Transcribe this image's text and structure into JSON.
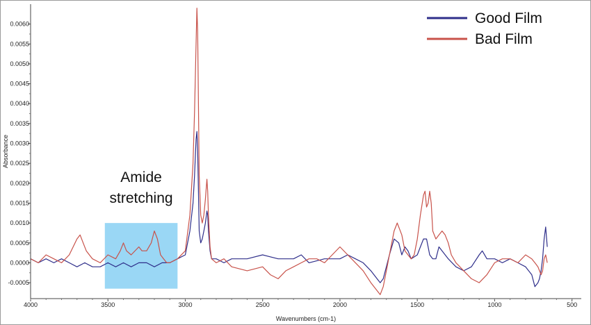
{
  "chart_data": {
    "type": "line",
    "title": "",
    "xlabel": "Wavenumbers (cm-1)",
    "ylabel": "Absorbance",
    "xlim": [
      4000,
      440
    ],
    "ylim": [
      -0.0009,
      0.0065
    ],
    "x_ticks": [
      4000,
      3500,
      3000,
      2500,
      2000,
      1500,
      1000,
      500
    ],
    "y_ticks": [
      -0.0005,
      0.0,
      0.0005,
      0.001,
      0.0015,
      0.002,
      0.0025,
      0.003,
      0.0035,
      0.004,
      0.0045,
      0.005,
      0.0055,
      0.006
    ],
    "x_tick_labels": [
      "4000",
      "3500",
      "3000",
      "2500",
      "2000",
      "1500",
      "1000",
      "500"
    ],
    "y_tick_labels": [
      "-0.0005",
      "0.0000",
      "0.0005",
      "0.0010",
      "0.0015",
      "0.0020",
      "0.0025",
      "0.0030",
      "0.0035",
      "0.0040",
      "0.0045",
      "0.0050",
      "0.0055",
      "0.0060"
    ],
    "grid": false,
    "legend_position": "top-right",
    "annotation": {
      "text_line1": "Amide",
      "text_line2": "stretching",
      "x_range": [
        3520,
        3050
      ],
      "y_range": [
        -0.00065,
        0.001
      ],
      "color": "#8fd3f4"
    },
    "series": [
      {
        "name": "Good Film",
        "color": "#2e2e8a",
        "x": [
          4000,
          3950,
          3900,
          3850,
          3800,
          3750,
          3700,
          3650,
          3600,
          3550,
          3500,
          3450,
          3400,
          3350,
          3300,
          3250,
          3200,
          3150,
          3100,
          3050,
          3000,
          2970,
          2950,
          2940,
          2930,
          2925,
          2920,
          2915,
          2910,
          2900,
          2890,
          2880,
          2870,
          2860,
          2855,
          2850,
          2840,
          2830,
          2800,
          2750,
          2700,
          2600,
          2500,
          2400,
          2300,
          2250,
          2200,
          2100,
          2000,
          1950,
          1900,
          1850,
          1800,
          1760,
          1740,
          1720,
          1700,
          1680,
          1650,
          1620,
          1600,
          1580,
          1560,
          1540,
          1500,
          1480,
          1460,
          1440,
          1420,
          1400,
          1380,
          1360,
          1340,
          1300,
          1250,
          1200,
          1150,
          1100,
          1080,
          1050,
          1000,
          950,
          900,
          850,
          800,
          760,
          740,
          720,
          710,
          700,
          690,
          680,
          670,
          660
        ],
        "y": [
          0.0001,
          0.0,
          0.0001,
          0.0,
          0.0001,
          0.0,
          -0.0001,
          0.0,
          -0.0001,
          -0.0001,
          0.0,
          -0.0001,
          0.0,
          -0.0001,
          0.0,
          0.0,
          -0.0001,
          0.0,
          0.0,
          0.0001,
          0.0002,
          0.0008,
          0.0015,
          0.0022,
          0.0031,
          0.0033,
          0.0028,
          0.0018,
          0.0008,
          0.0005,
          0.0006,
          0.0008,
          0.001,
          0.0013,
          0.0012,
          0.0008,
          0.0003,
          0.0001,
          0.0001,
          0.0,
          0.0001,
          0.0001,
          0.0002,
          0.0001,
          0.0001,
          0.0002,
          0.0,
          0.0001,
          0.0001,
          0.0002,
          0.0001,
          0.0,
          -0.0002,
          -0.0004,
          -0.0005,
          -0.0004,
          -0.0001,
          0.0002,
          0.0006,
          0.0005,
          0.0002,
          0.0004,
          0.0003,
          0.0001,
          0.0002,
          0.0004,
          0.0006,
          0.0006,
          0.0002,
          0.0001,
          0.0001,
          0.0004,
          0.0003,
          0.0001,
          -0.0001,
          -0.0002,
          -0.0001,
          0.0002,
          0.0003,
          0.0001,
          0.0001,
          0.0,
          0.0001,
          0.0,
          -0.0001,
          -0.0003,
          -0.0006,
          -0.0005,
          -0.0004,
          -0.0002,
          0.0001,
          0.0006,
          0.0009,
          0.0004
        ]
      },
      {
        "name": "Bad Film",
        "color": "#c8524a",
        "x": [
          4000,
          3950,
          3900,
          3850,
          3800,
          3750,
          3700,
          3680,
          3660,
          3640,
          3620,
          3600,
          3550,
          3500,
          3450,
          3420,
          3400,
          3380,
          3350,
          3300,
          3280,
          3250,
          3220,
          3200,
          3180,
          3160,
          3140,
          3120,
          3100,
          3050,
          3000,
          2970,
          2950,
          2940,
          2930,
          2925,
          2920,
          2915,
          2910,
          2900,
          2890,
          2880,
          2870,
          2860,
          2855,
          2850,
          2840,
          2830,
          2800,
          2750,
          2700,
          2600,
          2500,
          2450,
          2400,
          2350,
          2300,
          2250,
          2200,
          2150,
          2100,
          2050,
          2000,
          1950,
          1900,
          1850,
          1800,
          1760,
          1740,
          1720,
          1700,
          1680,
          1650,
          1630,
          1600,
          1580,
          1560,
          1540,
          1520,
          1500,
          1480,
          1460,
          1450,
          1440,
          1430,
          1420,
          1410,
          1400,
          1380,
          1360,
          1340,
          1320,
          1300,
          1280,
          1250,
          1200,
          1150,
          1100,
          1050,
          1000,
          950,
          900,
          850,
          800,
          760,
          740,
          720,
          710,
          700,
          690,
          680,
          670,
          660
        ],
        "y": [
          0.0001,
          0.0,
          0.0002,
          0.0001,
          0.0,
          0.0002,
          0.0006,
          0.0007,
          0.0005,
          0.0003,
          0.0002,
          0.0001,
          0.0,
          0.0002,
          0.0001,
          0.0003,
          0.0005,
          0.0003,
          0.0002,
          0.0004,
          0.0003,
          0.0003,
          0.0005,
          0.0008,
          0.0006,
          0.0002,
          0.0001,
          0.0,
          0.0,
          0.0001,
          0.0003,
          0.0012,
          0.0025,
          0.0038,
          0.0055,
          0.0064,
          0.0058,
          0.004,
          0.0022,
          0.0012,
          0.001,
          0.0012,
          0.0016,
          0.0021,
          0.0018,
          0.0012,
          0.0004,
          0.0001,
          0.0,
          0.0001,
          -0.0001,
          -0.0002,
          -0.0001,
          -0.0003,
          -0.0004,
          -0.0002,
          -0.0001,
          0.0,
          0.0001,
          0.0001,
          0.0,
          0.0002,
          0.0004,
          0.0002,
          0.0,
          -0.0002,
          -0.0005,
          -0.0007,
          -0.0008,
          -0.0006,
          -0.0002,
          0.0002,
          0.0008,
          0.001,
          0.0007,
          0.0003,
          0.0002,
          0.0001,
          0.0002,
          0.0006,
          0.0012,
          0.0017,
          0.0018,
          0.0014,
          0.0015,
          0.0018,
          0.0015,
          0.0008,
          0.0006,
          0.0007,
          0.0008,
          0.0007,
          0.0005,
          0.0002,
          0.0,
          -0.0002,
          -0.0004,
          -0.0005,
          -0.0003,
          0.0,
          0.0001,
          0.0001,
          0.0,
          0.0002,
          0.0001,
          0.0,
          -0.0001,
          -0.0002,
          -0.0003,
          -0.0002,
          0.0001,
          0.0002,
          0.0
        ]
      }
    ]
  }
}
